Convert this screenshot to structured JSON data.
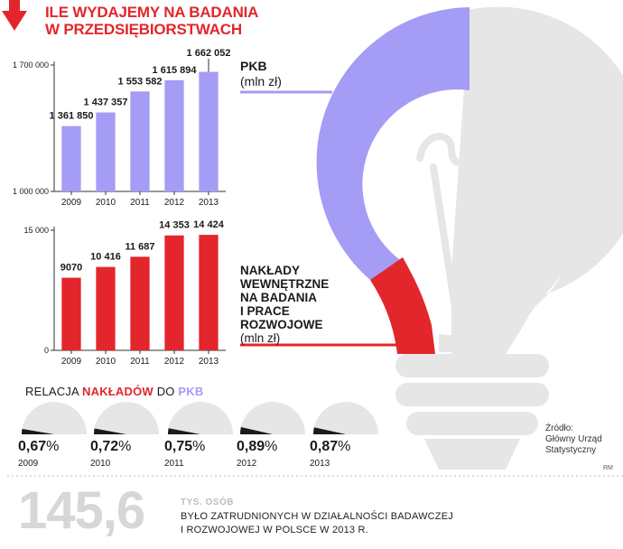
{
  "title_lines": [
    "ILE WYDAJEMY NA BADANIA",
    "W PRZEDSIĘBIORSTWACH"
  ],
  "colors": {
    "red": "#e3262b",
    "purple": "#a49cf5",
    "gray": "#e6e6e6",
    "dark": "#1a1a1a"
  },
  "chart_data": [
    {
      "type": "bar",
      "categories": [
        "2009",
        "2010",
        "2011",
        "2012",
        "2013"
      ],
      "values": [
        1361850,
        1437357,
        1553582,
        1615894,
        1662052
      ],
      "value_labels": [
        "1 361 850",
        "1 437 357",
        "1 553 582",
        "1 615 894",
        "1 662 052"
      ],
      "ylim": [
        1000000,
        1700000
      ],
      "yticks": [
        "1 000 000",
        "1 700 000"
      ],
      "label_title": "PKB",
      "label_unit": "(mln zł)",
      "color": "#a49cf5"
    },
    {
      "type": "bar",
      "categories": [
        "2009",
        "2010",
        "2011",
        "2012",
        "2013"
      ],
      "values": [
        9070,
        10416,
        11687,
        14353,
        14424
      ],
      "value_labels": [
        "9070",
        "10 416",
        "11 687",
        "14 353",
        "14 424"
      ],
      "ylim": [
        0,
        15000
      ],
      "yticks": [
        "0",
        "15 000"
      ],
      "label_title_lines": [
        "NAKŁADY",
        "WEWNĘTRZNE",
        "NA BADANIA",
        "I PRACE",
        "ROZWOJOWE"
      ],
      "label_unit": "(mln zł)",
      "color": "#e3262b"
    },
    {
      "type": "pie",
      "title_parts": [
        "RELACJA ",
        "NAKŁADÓW",
        " DO ",
        "PKB"
      ],
      "categories": [
        "2009",
        "2010",
        "2011",
        "2012",
        "2013"
      ],
      "values": [
        0.67,
        0.72,
        0.75,
        0.89,
        0.87
      ],
      "value_labels": [
        "0,67",
        "0,72",
        "0,75",
        "0,89",
        "0,87"
      ],
      "unit": "%"
    }
  ],
  "source_lines": [
    "Źródło:",
    "Główny Urząd",
    "Statystyczny"
  ],
  "credit": "RM",
  "employment": {
    "value": "145,6",
    "unit": "TYS. OSÓB",
    "text_lines": [
      "BYŁO ZATRUDNIONYCH W DZIAŁALNOŚCI BADAWCZEJ",
      "I ROZWOJOWEJ W POLSCE W 2013 R."
    ]
  }
}
